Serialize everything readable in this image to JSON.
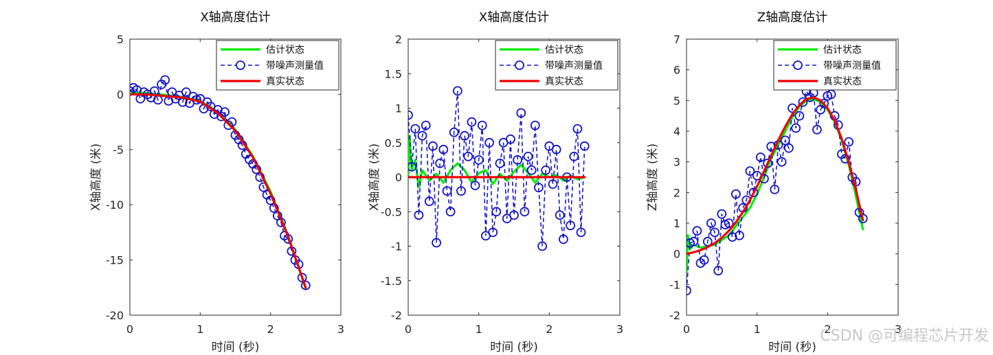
{
  "watermark": "CSDN @可编程芯片开发",
  "legend": {
    "estimate": "估计状态",
    "noisy": "带噪声测量值",
    "truth": "真实状态"
  },
  "colors": {
    "estimate": "#00ee00",
    "noisy": "#1515c8",
    "truth": "#ee0000",
    "axis": "#262626"
  },
  "chart_data": [
    {
      "type": "line",
      "title": "X轴高度估计",
      "xlabel": "时间 (秒)",
      "ylabel": "X轴高度 (米)",
      "xlim": [
        0,
        3
      ],
      "ylim": [
        -20,
        5
      ],
      "xticks": [
        0,
        1,
        2,
        3
      ],
      "yticks": [
        -20,
        -15,
        -10,
        -5,
        0,
        5
      ],
      "legend_position": "top-right",
      "series": [
        {
          "name": "估计状态",
          "style": "solid-thick",
          "x": [
            0,
            0.25,
            0.5,
            0.75,
            1.0,
            1.25,
            1.5,
            1.75,
            2.0,
            2.25,
            2.5
          ],
          "y": [
            0.2,
            0.1,
            -0.05,
            -0.25,
            -0.6,
            -1.6,
            -3.2,
            -5.6,
            -8.8,
            -12.8,
            -17.6
          ]
        },
        {
          "name": "带噪声测量值",
          "style": "dashed-circle",
          "x": [
            0,
            0.05,
            0.1,
            0.15,
            0.2,
            0.25,
            0.3,
            0.35,
            0.4,
            0.45,
            0.5,
            0.55,
            0.6,
            0.65,
            0.7,
            0.75,
            0.8,
            0.85,
            0.9,
            0.95,
            1.0,
            1.05,
            1.1,
            1.15,
            1.2,
            1.25,
            1.3,
            1.35,
            1.4,
            1.45,
            1.5,
            1.55,
            1.6,
            1.65,
            1.7,
            1.75,
            1.8,
            1.85,
            1.9,
            1.95,
            2.0,
            2.05,
            2.1,
            2.15,
            2.2,
            2.25,
            2.3,
            2.35,
            2.4,
            2.45,
            2.5
          ],
          "y": [
            0.3,
            0.6,
            0.4,
            -0.4,
            0.2,
            0.0,
            -0.3,
            0.3,
            -0.5,
            0.9,
            1.3,
            -0.6,
            0.2,
            -0.4,
            -0.1,
            -0.7,
            0.2,
            -0.8,
            -0.2,
            -0.5,
            -0.4,
            -1.3,
            -0.7,
            -1.1,
            -1.8,
            -1.4,
            -2.0,
            -1.6,
            -2.8,
            -2.5,
            -3.7,
            -4.1,
            -4.6,
            -5.4,
            -5.9,
            -6.3,
            -6.8,
            -7.5,
            -8.4,
            -9.1,
            -9.6,
            -10.3,
            -11.0,
            -11.6,
            -12.8,
            -13.1,
            -14.2,
            -15.0,
            -15.4,
            -16.6,
            -17.3
          ]
        },
        {
          "name": "真实状态",
          "style": "solid-thick",
          "x": [
            0,
            0.25,
            0.5,
            0.75,
            1.0,
            1.25,
            1.5,
            1.75,
            2.0,
            2.25,
            2.5
          ],
          "y": [
            0.0,
            -0.02,
            -0.15,
            -0.3,
            -0.65,
            -1.7,
            -3.3,
            -5.7,
            -9.0,
            -12.9,
            -17.5
          ]
        }
      ]
    },
    {
      "type": "line",
      "title": "X轴高度估计",
      "xlabel": "时间 (秒)",
      "ylabel": "X轴高度 (米)",
      "xlim": [
        0,
        3
      ],
      "ylim": [
        -2,
        2
      ],
      "xticks": [
        0,
        1,
        2,
        3
      ],
      "yticks": [
        -2,
        -1.5,
        -1,
        -0.5,
        0,
        0.5,
        1,
        1.5,
        2
      ],
      "legend_position": "top-right",
      "series": [
        {
          "name": "估计状态",
          "style": "solid-thick",
          "x": [
            0,
            0.02,
            0.05,
            0.1,
            0.15,
            0.2,
            0.3,
            0.4,
            0.5,
            0.6,
            0.7,
            0.8,
            0.9,
            1.0,
            1.1,
            1.2,
            1.3,
            1.4,
            1.5,
            1.6,
            1.7,
            1.8,
            1.9,
            2.0,
            2.1,
            2.2,
            2.3,
            2.4,
            2.5
          ],
          "y": [
            0.0,
            0.6,
            0.1,
            0.25,
            -0.15,
            0.1,
            -0.05,
            0.05,
            -0.08,
            0.1,
            0.2,
            0.1,
            -0.08,
            0.06,
            0.1,
            -0.1,
            0.05,
            -0.05,
            0.08,
            0.18,
            0.06,
            -0.08,
            0.05,
            0.0,
            0.03,
            -0.05,
            0.02,
            -0.03,
            0.0
          ]
        },
        {
          "name": "带噪声测量值",
          "style": "dashed-circle",
          "x": [
            0,
            0.05,
            0.1,
            0.15,
            0.2,
            0.25,
            0.3,
            0.35,
            0.4,
            0.45,
            0.5,
            0.55,
            0.6,
            0.65,
            0.7,
            0.75,
            0.8,
            0.85,
            0.9,
            0.95,
            1.0,
            1.05,
            1.1,
            1.15,
            1.2,
            1.25,
            1.3,
            1.35,
            1.4,
            1.45,
            1.5,
            1.55,
            1.6,
            1.65,
            1.7,
            1.75,
            1.8,
            1.85,
            1.9,
            1.95,
            2.0,
            2.05,
            2.1,
            2.15,
            2.2,
            2.25,
            2.3,
            2.35,
            2.4,
            2.45,
            2.5
          ],
          "y": [
            0.9,
            0.15,
            0.7,
            -0.55,
            0.6,
            0.75,
            -0.35,
            0.45,
            -0.95,
            0.2,
            0.4,
            -0.2,
            -0.5,
            0.65,
            1.25,
            -0.2,
            0.6,
            0.3,
            0.8,
            -0.12,
            0.25,
            0.75,
            -0.85,
            0.5,
            -0.8,
            -0.5,
            0.2,
            0.5,
            -0.6,
            0.55,
            -0.55,
            0.25,
            0.93,
            -0.5,
            0.3,
            0.1,
            0.75,
            -0.15,
            -1.0,
            0.1,
            0.45,
            -0.1,
            0.4,
            -0.55,
            -0.9,
            0.0,
            -0.7,
            0.3,
            0.7,
            -0.8,
            0.45
          ]
        },
        {
          "name": "真实状态",
          "style": "solid-thick",
          "x": [
            0,
            2.5
          ],
          "y": [
            0,
            0
          ]
        }
      ]
    },
    {
      "type": "line",
      "title": "Z轴高度估计",
      "xlabel": "时间 (秒)",
      "ylabel": "Z轴高度 (米)",
      "xlim": [
        0,
        3
      ],
      "ylim": [
        -2,
        7
      ],
      "xticks": [
        0,
        1,
        2,
        3
      ],
      "yticks": [
        -2,
        -1,
        0,
        1,
        2,
        3,
        4,
        5,
        6,
        7
      ],
      "legend_position": "top-right",
      "series": [
        {
          "name": "估计状态",
          "style": "solid-thick",
          "x": [
            0,
            0.02,
            0.05,
            0.1,
            0.2,
            0.3,
            0.4,
            0.5,
            0.6,
            0.7,
            0.8,
            0.9,
            1.0,
            1.1,
            1.2,
            1.3,
            1.4,
            1.5,
            1.6,
            1.7,
            1.8,
            1.9,
            2.0,
            2.1,
            2.2,
            2.3,
            2.4,
            2.5
          ],
          "y": [
            -0.6,
            0.6,
            0.15,
            0.3,
            0.2,
            0.25,
            0.3,
            0.45,
            0.6,
            0.9,
            1.2,
            1.5,
            1.95,
            2.5,
            3.1,
            3.55,
            4.0,
            4.45,
            4.8,
            5.0,
            5.05,
            4.95,
            4.7,
            4.3,
            3.7,
            2.9,
            1.9,
            0.8
          ]
        },
        {
          "name": "带噪声测量值",
          "style": "dashed-circle",
          "x": [
            0,
            0.05,
            0.1,
            0.15,
            0.2,
            0.25,
            0.3,
            0.35,
            0.4,
            0.45,
            0.5,
            0.55,
            0.6,
            0.65,
            0.7,
            0.75,
            0.8,
            0.85,
            0.9,
            0.95,
            1.0,
            1.05,
            1.1,
            1.15,
            1.2,
            1.25,
            1.3,
            1.35,
            1.4,
            1.45,
            1.5,
            1.55,
            1.6,
            1.65,
            1.7,
            1.75,
            1.8,
            1.85,
            1.9,
            1.95,
            2.0,
            2.05,
            2.1,
            2.15,
            2.2,
            2.25,
            2.3,
            2.35,
            2.4,
            2.45,
            2.5
          ],
          "y": [
            -1.2,
            0.35,
            0.4,
            0.75,
            -0.3,
            -0.2,
            0.4,
            1.0,
            0.7,
            -0.55,
            1.3,
            0.95,
            1.0,
            0.55,
            1.95,
            0.6,
            1.5,
            1.75,
            2.7,
            2.0,
            2.55,
            3.15,
            2.45,
            2.95,
            3.5,
            2.1,
            3.55,
            3.0,
            3.7,
            3.45,
            4.75,
            4.1,
            4.5,
            4.95,
            5.3,
            5.1,
            5.25,
            4.05,
            4.7,
            4.9,
            5.15,
            5.2,
            4.5,
            4.2,
            3.25,
            3.1,
            3.65,
            2.5,
            2.35,
            1.35,
            1.15
          ]
        },
        {
          "name": "真实状态",
          "style": "solid-thick",
          "x": [
            0,
            0.1,
            0.2,
            0.3,
            0.4,
            0.5,
            0.6,
            0.7,
            0.8,
            0.9,
            1.0,
            1.1,
            1.2,
            1.3,
            1.4,
            1.5,
            1.6,
            1.7,
            1.8,
            1.9,
            2.0,
            2.1,
            2.2,
            2.3,
            2.4,
            2.5
          ],
          "y": [
            0.0,
            0.05,
            0.12,
            0.22,
            0.35,
            0.52,
            0.75,
            1.03,
            1.36,
            1.75,
            2.2,
            2.7,
            3.2,
            3.7,
            4.15,
            4.55,
            4.85,
            5.05,
            5.1,
            5.0,
            4.75,
            4.35,
            3.75,
            3.0,
            2.1,
            1.1
          ]
        }
      ]
    }
  ]
}
